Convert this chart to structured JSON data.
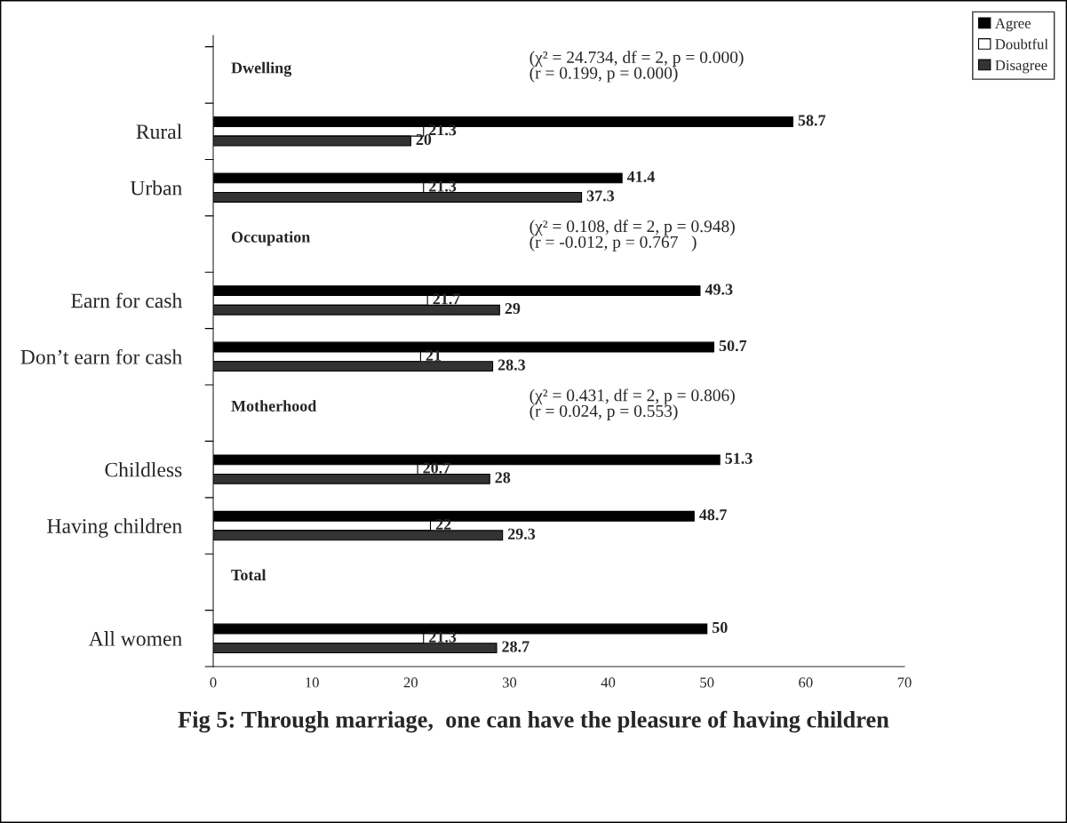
{
  "chart_data": {
    "type": "bar",
    "orientation": "horizontal",
    "title": "Fig 5: Through marriage,  one can have the pleasure of having children",
    "categories": [
      null,
      "Rural",
      "Urban",
      null,
      "Earn for cash",
      "Don’t earn for cash",
      null,
      "Childless",
      "Having children",
      null,
      "All women"
    ],
    "series": [
      {
        "name": "Agree",
        "color": "#000000",
        "values": [
          null,
          58.7,
          41.4,
          null,
          49.3,
          50.7,
          null,
          51.3,
          48.7,
          null,
          50
        ]
      },
      {
        "name": "Doubtful",
        "color": "#ffffff",
        "values": [
          null,
          21.3,
          21.3,
          null,
          21.7,
          21,
          null,
          20.7,
          22,
          null,
          21.3
        ]
      },
      {
        "name": "Disagree",
        "color": "#333333",
        "values": [
          null,
          20,
          37.3,
          null,
          29,
          28.3,
          null,
          28,
          29.3,
          null,
          28.7
        ]
      }
    ],
    "annotations": [
      "Dwelling",
      "(χ² = 24.734, df = 2, p = 0.000)\n(r = 0.199, p = 0.000)",
      "Occupation",
      "(χ² = 0.108, df = 2, p = 0.948)\n(r = -0.012, p = 0.767   )",
      "Motherhood",
      "(χ² = 0.431, df = 2, p = 0.806)\n(r = 0.024, p = 0.553)",
      "Total"
    ],
    "xlim": [
      0,
      70
    ],
    "xticks": [
      0,
      10,
      20,
      30,
      40,
      50,
      60,
      70
    ],
    "data_labels": true,
    "grid": false,
    "legend": "top right"
  }
}
